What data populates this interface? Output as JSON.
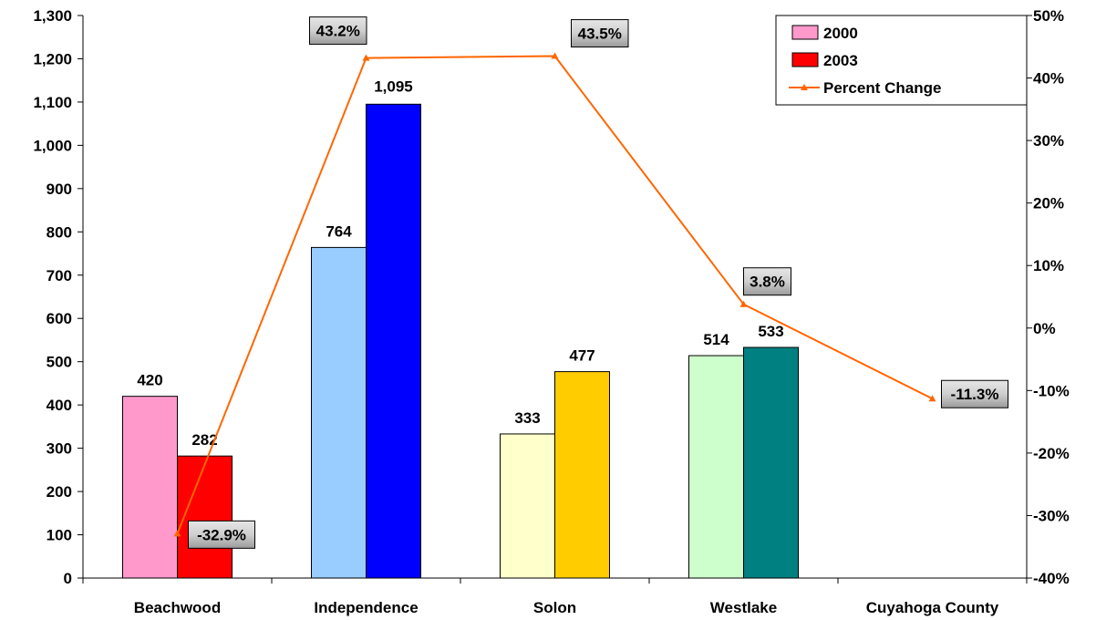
{
  "chart_data": {
    "type": "bar",
    "categories": [
      "Beachwood",
      "Independence",
      "Solon",
      "Westlake",
      "Cuyahoga County"
    ],
    "series": [
      {
        "name": "2000",
        "values": [
          420,
          764,
          333,
          514,
          null
        ],
        "labels": [
          "420",
          "764",
          "333",
          "514",
          ""
        ],
        "colors": [
          "#ff99cc",
          "#99ccff",
          "#ffffcc",
          "#ccffcc",
          "#ffffff"
        ]
      },
      {
        "name": "2003",
        "values": [
          282,
          1095,
          477,
          533,
          null
        ],
        "labels": [
          "282",
          "1,095",
          "477",
          "533",
          ""
        ],
        "colors": [
          "#ff0000",
          "#0000ff",
          "#ffcc00",
          "#008080",
          "#ffffff"
        ]
      }
    ],
    "line_series": {
      "name": "Percent Change",
      "axis": "right",
      "values": [
        -32.9,
        43.2,
        43.5,
        3.8,
        -11.3
      ],
      "labels": [
        "-32.9%",
        "43.2%",
        "43.5%",
        "3.8%",
        "-11.3%"
      ],
      "color": "#ff6600"
    },
    "legend": {
      "position": "top-right",
      "entries": [
        {
          "label": "2000",
          "color": "#ff99cc",
          "kind": "bar"
        },
        {
          "label": "2003",
          "color": "#ff0000",
          "kind": "bar"
        },
        {
          "label": "Percent Change",
          "color": "#ff6600",
          "kind": "line"
        }
      ]
    },
    "y_left": {
      "range": [
        0,
        1300
      ],
      "ticks": [
        0,
        100,
        200,
        300,
        400,
        500,
        600,
        700,
        800,
        900,
        1000,
        1100,
        1200,
        1300
      ],
      "tick_labels": [
        "0",
        "100",
        "200",
        "300",
        "400",
        "500",
        "600",
        "700",
        "800",
        "900",
        "1,000",
        "1,100",
        "1,200",
        "1,300"
      ]
    },
    "y_right": {
      "range": [
        -40,
        50
      ],
      "ticks": [
        -40,
        -30,
        -20,
        -10,
        0,
        10,
        20,
        30,
        40,
        50
      ],
      "tick_labels": [
        "-40%",
        "-30%",
        "-20%",
        "-10%",
        "0%",
        "10%",
        "20%",
        "30%",
        "40%",
        "50%"
      ]
    },
    "grid": false,
    "title": "",
    "xlabel": "",
    "ylabel": ""
  }
}
